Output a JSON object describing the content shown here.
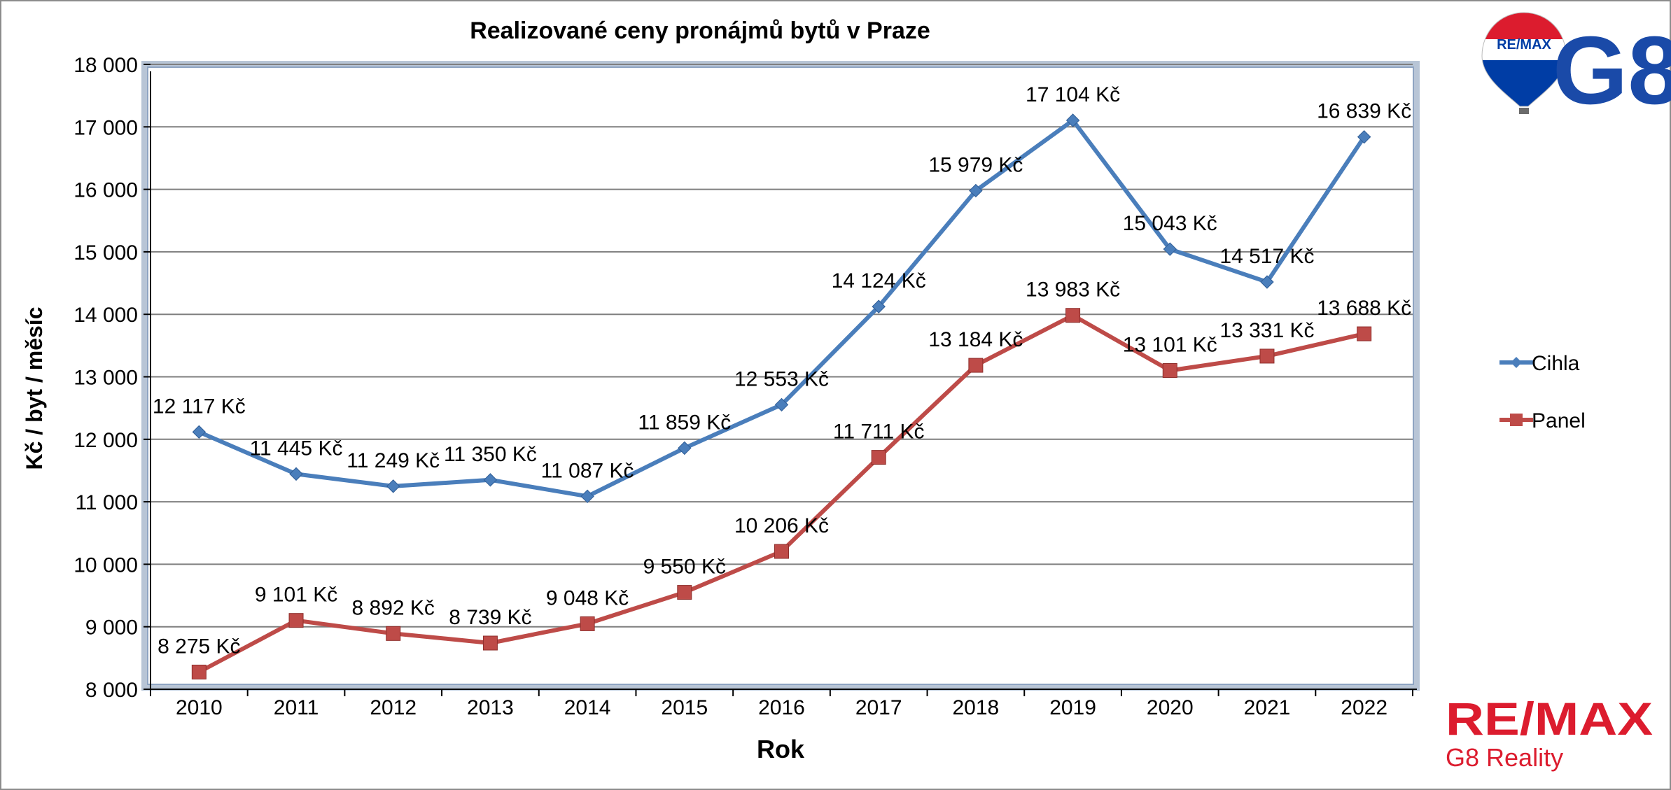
{
  "chart_data": {
    "type": "line",
    "title": "Realizované ceny pronájmů bytů v Praze",
    "xlabel": "Rok",
    "ylabel": "Kč / byt / měsíc",
    "categories": [
      "2010",
      "2011",
      "2012",
      "2013",
      "2014",
      "2015",
      "2016",
      "2017",
      "2018",
      "2019",
      "2020",
      "2021",
      "2022"
    ],
    "ylim": [
      8000,
      18000
    ],
    "yticks": [
      8000,
      9000,
      10000,
      11000,
      12000,
      13000,
      14000,
      15000,
      16000,
      17000,
      18000
    ],
    "ytick_labels": [
      "8 000",
      "9 000",
      "10 000",
      "11 000",
      "12 000",
      "13 000",
      "14 000",
      "15 000",
      "16 000",
      "17 000",
      "18 000"
    ],
    "grid": true,
    "legend_position": "right",
    "series": [
      {
        "name": "Cihla",
        "color": "#4a7ebb",
        "marker": "diamond",
        "values": [
          12117,
          11445,
          11249,
          11350,
          11087,
          11859,
          12553,
          14124,
          15979,
          17104,
          15043,
          14517,
          16839
        ],
        "labels": [
          "12 117 Kč",
          "11 445 Kč",
          "11 249 Kč",
          "11 350 Kč",
          "11 087 Kč",
          "11 859 Kč",
          "12 553 Kč",
          "14 124 Kč",
          "15 979 Kč",
          "17 104 Kč",
          "15 043 Kč",
          "14 517 Kč",
          "16 839 Kč"
        ]
      },
      {
        "name": "Panel",
        "color": "#be4b48",
        "marker": "square",
        "values": [
          8275,
          9101,
          8892,
          8739,
          9048,
          9550,
          10206,
          11711,
          13184,
          13983,
          13101,
          13331,
          13688
        ],
        "labels": [
          "8 275 Kč",
          "9 101 Kč",
          "8 892 Kč",
          "8 739 Kč",
          "9 048 Kč",
          "9 550 Kč",
          "10 206 Kč",
          "11 711 Kč",
          "13 184 Kč",
          "13 983 Kč",
          "13 101 Kč",
          "13 331 Kč",
          "13 688 Kč"
        ]
      }
    ]
  },
  "logos": {
    "balloon_text": "RE/MAX",
    "g8_text": "G8",
    "remax_text": "RE/MAX",
    "reality_text": "G8 Reality",
    "remax_red": "#dc1c2e",
    "remax_blue": "#003da5"
  }
}
